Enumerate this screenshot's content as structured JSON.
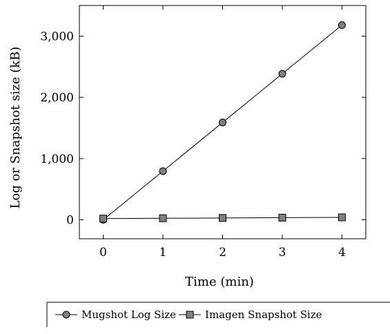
{
  "chart_data": {
    "type": "line",
    "title": "",
    "xlabel": "Time (min)",
    "ylabel": "Log or Snapshot size (kB)",
    "x": [
      0,
      1,
      2,
      3,
      4
    ],
    "x_tick_labels": [
      "0",
      "1",
      "2",
      "3",
      "4"
    ],
    "xlim": [
      -0.4,
      4.4
    ],
    "y_ticks": [
      0,
      1000,
      2000,
      3000
    ],
    "y_tick_labels": [
      "0",
      "1,000",
      "2,000",
      "3,000"
    ],
    "ylim": [
      -310,
      3500
    ],
    "grid": false,
    "legend_position": "bottom",
    "series": [
      {
        "name": "Mugshot Log Size",
        "marker": "circle",
        "color": "#808080",
        "values": [
          0,
          795,
          1590,
          2385,
          3180
        ]
      },
      {
        "name": "Imagen Snapshot Size",
        "marker": "square",
        "color": "#808080",
        "values": [
          20,
          25,
          30,
          35,
          40
        ]
      }
    ]
  }
}
